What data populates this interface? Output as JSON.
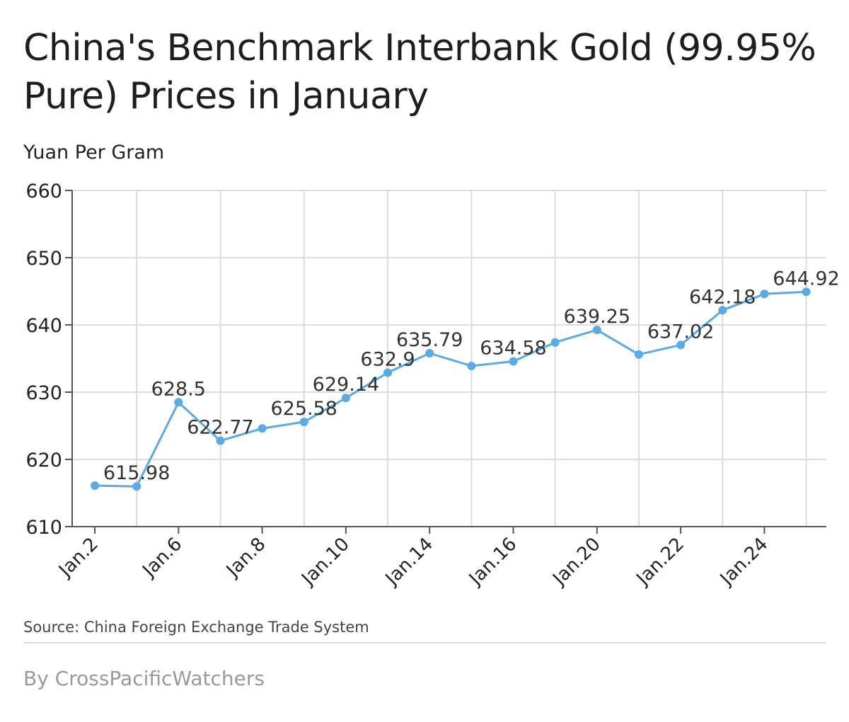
{
  "page": {
    "title": "China's Benchmark Interbank Gold (99.95% Pure) Prices in January",
    "unit_label": "Yuan Per Gram",
    "source": "Source: China Foreign Exchange Trade System",
    "byline": "By CrossPacificWatchers"
  },
  "colors": {
    "line": "#5aabe4",
    "grid": "#dcdcdc",
    "axis": "#555555",
    "text": "#222222"
  },
  "chart_data": {
    "type": "line",
    "title": "China's Benchmark Interbank Gold (99.95% Pure) Prices in January",
    "ylabel": "Yuan Per Gram",
    "xlabel": "",
    "ylim": [
      610,
      660
    ],
    "yticks": [
      610,
      620,
      630,
      640,
      650,
      660
    ],
    "grid": true,
    "x_tick_labels": [
      "Jan.2",
      "Jan.6",
      "Jan.8",
      "Jan.10",
      "Jan.14",
      "Jan.16",
      "Jan.20",
      "Jan.22",
      "Jan.24"
    ],
    "series": [
      {
        "values": [
          {
            "x": "Jan.2",
            "y": 616.1,
            "label": ""
          },
          {
            "x": "Jan.3",
            "y": 615.98,
            "label": "615.98"
          },
          {
            "x": "Jan.6",
            "y": 628.5,
            "label": "628.5"
          },
          {
            "x": "Jan.7",
            "y": 622.77,
            "label": "622.77"
          },
          {
            "x": "Jan.8",
            "y": 624.6,
            "label": ""
          },
          {
            "x": "Jan.9",
            "y": 625.58,
            "label": "625.58"
          },
          {
            "x": "Jan.10",
            "y": 629.14,
            "label": "629.14"
          },
          {
            "x": "Jan.13",
            "y": 632.9,
            "label": "632.9"
          },
          {
            "x": "Jan.14",
            "y": 635.79,
            "label": "635.79"
          },
          {
            "x": "Jan.15",
            "y": 633.9,
            "label": ""
          },
          {
            "x": "Jan.16",
            "y": 634.58,
            "label": "634.58"
          },
          {
            "x": "Jan.17",
            "y": 637.4,
            "label": ""
          },
          {
            "x": "Jan.20",
            "y": 639.25,
            "label": "639.25"
          },
          {
            "x": "Jan.21",
            "y": 635.6,
            "label": ""
          },
          {
            "x": "Jan.22",
            "y": 637.02,
            "label": "637.02"
          },
          {
            "x": "Jan.23",
            "y": 642.18,
            "label": "642.18"
          },
          {
            "x": "Jan.24",
            "y": 644.6,
            "label": ""
          },
          {
            "x": "Jan.27",
            "y": 644.92,
            "label": "644.92"
          }
        ]
      }
    ]
  }
}
